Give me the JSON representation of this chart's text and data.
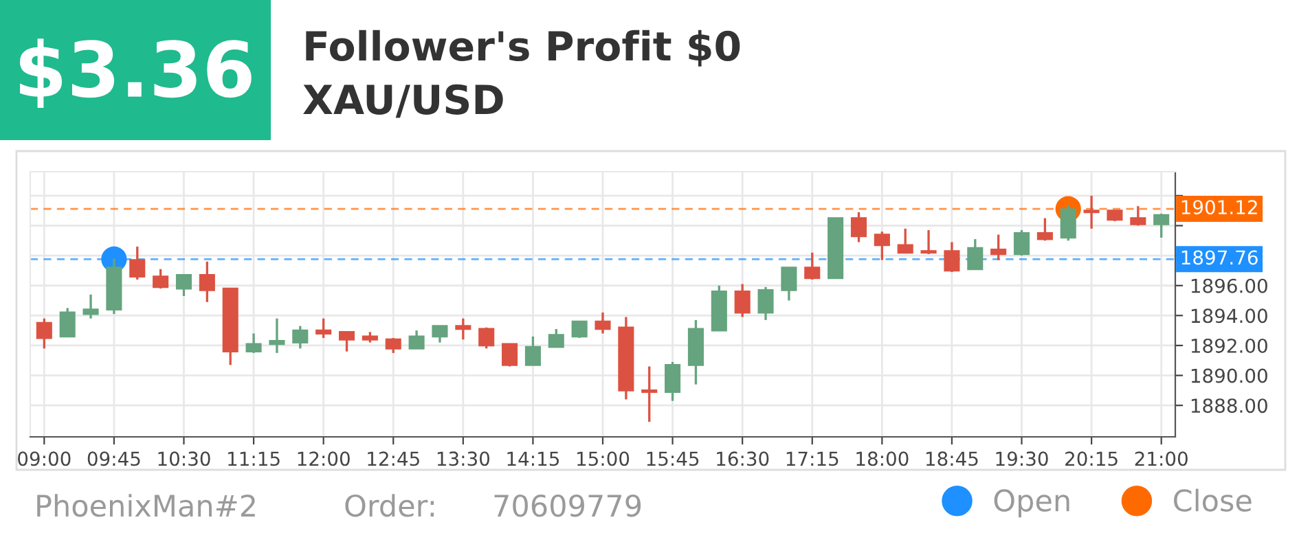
{
  "chart_data": {
    "type": "candlestick",
    "title": "Follower's Profit $0",
    "subtitle": "XAU/USD",
    "annotations": [
      "$3.36",
      "PhoenixMan#2",
      "Order:",
      "70609779"
    ],
    "x": [
      9.0,
      9.25,
      9.5,
      9.75,
      10.0,
      10.25,
      10.5,
      10.75,
      11.0,
      11.25,
      11.5,
      11.75,
      12.0,
      12.25,
      12.5,
      12.75,
      13.0,
      13.25,
      13.5,
      13.75,
      14.0,
      14.25,
      14.5,
      14.75,
      15.0,
      15.25,
      15.5,
      15.75,
      16.0,
      16.25,
      16.5,
      16.75,
      17.0,
      17.25,
      17.5,
      17.75,
      18.0,
      18.25,
      18.5,
      18.75,
      19.0,
      19.25,
      19.5,
      19.75,
      20.0,
      20.25,
      20.5,
      20.75,
      21.0
    ],
    "ohlc": [
      [
        1893.5,
        1893.8,
        1891.8,
        1892.5
      ],
      [
        1892.6,
        1894.5,
        1892.6,
        1894.2
      ],
      [
        1894.1,
        1895.4,
        1893.8,
        1894.4
      ],
      [
        1894.4,
        1897.8,
        1894.1,
        1897.2
      ],
      [
        1897.7,
        1898.6,
        1896.4,
        1896.6
      ],
      [
        1896.6,
        1897.1,
        1895.8,
        1895.9
      ],
      [
        1895.8,
        1896.7,
        1895.3,
        1896.7
      ],
      [
        1896.7,
        1897.6,
        1894.9,
        1895.7
      ],
      [
        1895.8,
        1895.8,
        1890.7,
        1891.6
      ],
      [
        1891.6,
        1892.8,
        1891.5,
        1892.1
      ],
      [
        1892.1,
        1893.8,
        1891.5,
        1892.3
      ],
      [
        1892.2,
        1893.3,
        1891.8,
        1893.0
      ],
      [
        1893.0,
        1893.8,
        1892.5,
        1892.8
      ],
      [
        1892.9,
        1892.9,
        1891.6,
        1892.4
      ],
      [
        1892.6,
        1892.9,
        1892.2,
        1892.4
      ],
      [
        1892.4,
        1892.5,
        1891.5,
        1891.8
      ],
      [
        1891.8,
        1893.0,
        1891.8,
        1892.6
      ],
      [
        1892.6,
        1893.3,
        1892.2,
        1893.3
      ],
      [
        1893.3,
        1893.8,
        1892.4,
        1893.1
      ],
      [
        1893.1,
        1893.2,
        1891.8,
        1892.0
      ],
      [
        1892.1,
        1892.1,
        1890.6,
        1890.7
      ],
      [
        1890.7,
        1892.6,
        1890.7,
        1891.9
      ],
      [
        1891.9,
        1893.1,
        1891.9,
        1892.7
      ],
      [
        1892.6,
        1893.6,
        1892.5,
        1893.6
      ],
      [
        1893.6,
        1894.2,
        1892.8,
        1893.1
      ],
      [
        1893.2,
        1893.9,
        1888.4,
        1889.0
      ],
      [
        1889.0,
        1890.6,
        1886.9,
        1888.9
      ],
      [
        1888.9,
        1890.9,
        1888.3,
        1890.7
      ],
      [
        1890.7,
        1893.7,
        1889.4,
        1893.1
      ],
      [
        1893.0,
        1896.0,
        1893.0,
        1895.6
      ],
      [
        1895.6,
        1896.1,
        1893.9,
        1894.2
      ],
      [
        1894.2,
        1895.9,
        1893.7,
        1895.7
      ],
      [
        1895.7,
        1897.2,
        1895.0,
        1897.2
      ],
      [
        1897.2,
        1898.2,
        1896.4,
        1896.5
      ],
      [
        1896.5,
        1900.5,
        1896.5,
        1900.5
      ],
      [
        1900.5,
        1900.9,
        1898.9,
        1899.3
      ],
      [
        1899.4,
        1899.6,
        1897.7,
        1898.7
      ],
      [
        1898.7,
        1899.8,
        1898.2,
        1898.2
      ],
      [
        1898.3,
        1899.7,
        1898.1,
        1898.2
      ],
      [
        1898.3,
        1898.9,
        1896.9,
        1897.0
      ],
      [
        1897.1,
        1899.1,
        1897.1,
        1898.5
      ],
      [
        1898.4,
        1899.4,
        1897.7,
        1898.1
      ],
      [
        1898.1,
        1899.7,
        1898.0,
        1899.5
      ],
      [
        1899.5,
        1900.5,
        1899.0,
        1899.1
      ],
      [
        1899.2,
        1901.4,
        1899.0,
        1901.1
      ],
      [
        1901.0,
        1902.0,
        1899.8,
        1900.9
      ],
      [
        1901.0,
        1901.0,
        1900.3,
        1900.4
      ],
      [
        1900.5,
        1901.3,
        1900.0,
        1900.1
      ],
      [
        1900.1,
        1900.8,
        1899.2,
        1900.7
      ]
    ],
    "colors": [
      "#dc5242",
      "#65a47e",
      "#65a47e",
      "#65a47e",
      "#dc5242",
      "#dc5242",
      "#65a47e",
      "#dc5242",
      "#dc5242",
      "#65a47e",
      "#65a47e",
      "#65a47e",
      "#dc5242",
      "#dc5242",
      "#dc5242",
      "#dc5242",
      "#65a47e",
      "#65a47e",
      "#dc5242",
      "#dc5242",
      "#dc5242",
      "#65a47e",
      "#65a47e",
      "#65a47e",
      "#dc5242",
      "#dc5242",
      "#dc5242",
      "#65a47e",
      "#65a47e",
      "#65a47e",
      "#dc5242",
      "#65a47e",
      "#65a47e",
      "#dc5242",
      "#65a47e",
      "#dc5242",
      "#dc5242",
      "#dc5242",
      "#dc5242",
      "#dc5242",
      "#65a47e",
      "#dc5242",
      "#65a47e",
      "#dc5242",
      "#65a47e",
      "#dc5242",
      "#dc5242",
      "#dc5242",
      "#65a47e"
    ],
    "series": [
      {
        "name": "Open",
        "type": "scatter",
        "color": "#1e90ff",
        "x": [
          9.75
        ],
        "values": [
          1897.76
        ],
        "marker": "circle"
      },
      {
        "name": "Close",
        "type": "scatter",
        "color": "#ff6a00",
        "x": [
          20.0
        ],
        "values": [
          1901.12
        ],
        "marker": "circle"
      }
    ],
    "ref_lines": [
      {
        "axis": "y",
        "value": 1901.12,
        "label": "1901.12",
        "color": "#ff6a00",
        "line_style": "dashed"
      },
      {
        "axis": "y",
        "value": 1897.76,
        "label": "1897.76",
        "color": "#1e90ff",
        "line_style": "dashed"
      }
    ],
    "xlim": [
      8.85,
      21.15
    ],
    "xticks": [
      {
        "value": 9.0,
        "label": "09:00"
      },
      {
        "value": 9.75,
        "label": "09:45"
      },
      {
        "value": 10.5,
        "label": "10:30"
      },
      {
        "value": 11.25,
        "label": "11:15"
      },
      {
        "value": 12.0,
        "label": "12:00"
      },
      {
        "value": 12.75,
        "label": "12:45"
      },
      {
        "value": 13.5,
        "label": "13:30"
      },
      {
        "value": 14.25,
        "label": "14:15"
      },
      {
        "value": 15.0,
        "label": "15:00"
      },
      {
        "value": 15.75,
        "label": "15:45"
      },
      {
        "value": 16.5,
        "label": "16:30"
      },
      {
        "value": 17.25,
        "label": "17:15"
      },
      {
        "value": 18.0,
        "label": "18:00"
      },
      {
        "value": 18.75,
        "label": "18:45"
      },
      {
        "value": 19.5,
        "label": "19:30"
      },
      {
        "value": 20.25,
        "label": "20:15"
      },
      {
        "value": 21.0,
        "label": "21:00"
      }
    ],
    "ylim": [
      1885.9,
      1903.6
    ],
    "yticks": [
      {
        "value": 1888,
        "label": "1888.00"
      },
      {
        "value": 1890,
        "label": "1890.00"
      },
      {
        "value": 1892,
        "label": "1892.00"
      },
      {
        "value": 1894,
        "label": "1894.00"
      },
      {
        "value": 1896,
        "label": "1896.00"
      },
      {
        "value": 1898,
        "label": null
      },
      {
        "value": 1900,
        "label": null
      },
      {
        "value": 1902,
        "label": null
      }
    ],
    "grid": true,
    "legend": "bottom right"
  }
}
